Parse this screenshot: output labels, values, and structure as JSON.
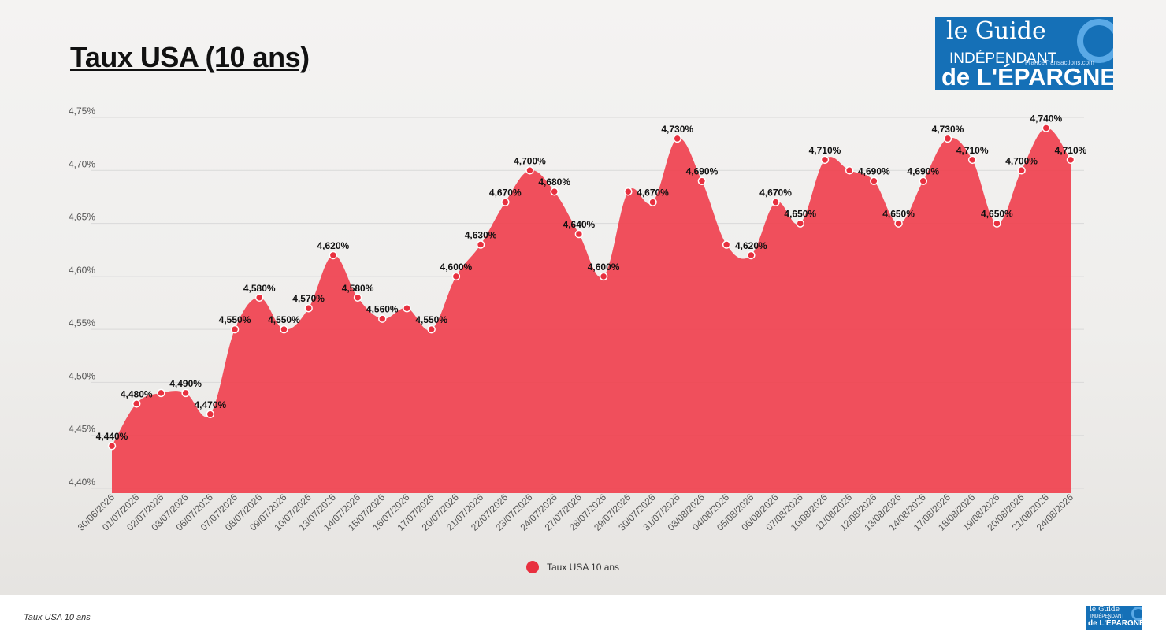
{
  "page_title": "Taux USA (10 ans)",
  "footer_caption": "Taux USA 10 ans",
  "logo": {
    "line1": "le Guide",
    "line2": "INDÉPENDANT",
    "line3": "de L'ÉPARGNE",
    "site": "FranceTransactions.com"
  },
  "colors": {
    "series_fill": "#f0414f",
    "series_point": "#e8303f",
    "point_stroke": "#ffffff",
    "gridline": "#d9d9d9",
    "logo_bg": "#1570b7"
  },
  "chart_data": {
    "type": "area",
    "title": "Taux USA (10 ans)",
    "xlabel": "",
    "ylabel": "",
    "ylim": [
      4.4,
      4.75
    ],
    "yticks": [
      4.4,
      4.45,
      4.5,
      4.55,
      4.6,
      4.65,
      4.7,
      4.75
    ],
    "ytick_labels": [
      "4,40%",
      "4,45%",
      "4,50%",
      "4,55%",
      "4,60%",
      "4,65%",
      "4,70%",
      "4,75%"
    ],
    "grid": true,
    "legend_position": "bottom-center",
    "categories": [
      "30/06/2026",
      "01/07/2026",
      "02/07/2026",
      "03/07/2026",
      "06/07/2026",
      "07/07/2026",
      "08/07/2026",
      "09/07/2026",
      "10/07/2026",
      "13/07/2026",
      "14/07/2026",
      "15/07/2026",
      "16/07/2026",
      "17/07/2026",
      "20/07/2026",
      "21/07/2026",
      "22/07/2026",
      "23/07/2026",
      "24/07/2026",
      "27/07/2026",
      "28/07/2026",
      "29/07/2026",
      "30/07/2026",
      "31/07/2026",
      "03/08/2026",
      "04/08/2026",
      "05/08/2026",
      "06/08/2026",
      "07/08/2026",
      "10/08/2026",
      "11/08/2026",
      "12/08/2026",
      "13/08/2026",
      "14/08/2026",
      "17/08/2026",
      "18/08/2026",
      "19/08/2026",
      "20/08/2026",
      "21/08/2026",
      "24/08/2026"
    ],
    "series": [
      {
        "name": "Taux USA 10 ans",
        "values": [
          4.44,
          4.48,
          4.49,
          4.49,
          4.47,
          4.55,
          4.58,
          4.55,
          4.57,
          4.62,
          4.58,
          4.56,
          4.57,
          4.55,
          4.6,
          4.63,
          4.67,
          4.7,
          4.68,
          4.64,
          4.6,
          4.68,
          4.67,
          4.73,
          4.69,
          4.63,
          4.62,
          4.67,
          4.65,
          4.71,
          4.7,
          4.69,
          4.65,
          4.69,
          4.73,
          4.71,
          4.65,
          4.7,
          4.74,
          4.71
        ],
        "data_labels": [
          "4,440%",
          "4,480%",
          "",
          "4,490%",
          "4,470%",
          "4,550%",
          "4,580%",
          "4,550%",
          "4,570%",
          "4,620%",
          "4,580%",
          "4,560%",
          "",
          "4,550%",
          "4,600%",
          "4,630%",
          "4,670%",
          "4,700%",
          "4,680%",
          "4,640%",
          "4,600%",
          "",
          "4,670%",
          "4,730%",
          "4,690%",
          "",
          "4,620%",
          "4,670%",
          "4,650%",
          "4,710%",
          "",
          "4,690%",
          "4,650%",
          "4,690%",
          "4,730%",
          "4,710%",
          "4,650%",
          "4,700%",
          "4,740%",
          "4,710%"
        ]
      }
    ]
  }
}
